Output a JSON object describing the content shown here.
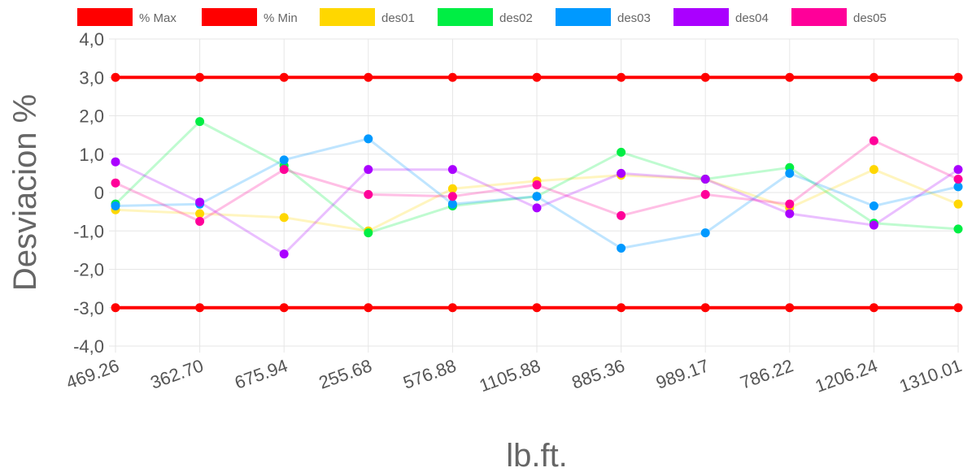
{
  "chart_data": {
    "type": "line",
    "xlabel": "lb.ft.",
    "ylabel": "Desviacion %",
    "ylim": [
      -4,
      4
    ],
    "yticks": [
      "-4,0",
      "-3,0",
      "-2,0",
      "-1,0",
      "0",
      "1,0",
      "2,0",
      "3,0",
      "4,0"
    ],
    "categories": [
      "469.26",
      "362.70",
      "675.94",
      "255.68",
      "576.88",
      "1105.88",
      "885.36",
      "989.17",
      "786.22",
      "1206.24",
      "1310.01"
    ],
    "legend_position": "top",
    "grid": true,
    "series": [
      {
        "name": "% Max",
        "color": "#ff0000",
        "opacity": 1,
        "width": 4,
        "values": [
          3,
          3,
          3,
          3,
          3,
          3,
          3,
          3,
          3,
          3,
          3
        ]
      },
      {
        "name": "% Min",
        "color": "#ff0000",
        "opacity": 1,
        "width": 4,
        "values": [
          -3,
          -3,
          -3,
          -3,
          -3,
          -3,
          -3,
          -3,
          -3,
          -3,
          -3
        ]
      },
      {
        "name": "des01",
        "color": "#ffd700",
        "opacity": 0.25,
        "width": 3,
        "values": [
          -0.45,
          -0.55,
          -0.65,
          -1.0,
          0.1,
          0.3,
          0.45,
          0.35,
          -0.4,
          0.6,
          -0.3
        ]
      },
      {
        "name": "des02",
        "color": "#00ee44",
        "opacity": 0.25,
        "width": 3,
        "values": [
          -0.3,
          1.85,
          0.7,
          -1.05,
          -0.35,
          -0.1,
          1.05,
          0.35,
          0.65,
          -0.8,
          -0.95
        ]
      },
      {
        "name": "des03",
        "color": "#0099ff",
        "opacity": 0.25,
        "width": 3,
        "values": [
          -0.35,
          -0.3,
          0.85,
          1.4,
          -0.3,
          -0.1,
          -1.45,
          -1.05,
          0.5,
          -0.35,
          0.15
        ]
      },
      {
        "name": "des04",
        "color": "#aa00ff",
        "opacity": 0.25,
        "width": 3,
        "values": [
          0.8,
          -0.25,
          -1.6,
          0.6,
          0.6,
          -0.4,
          0.5,
          0.35,
          -0.55,
          -0.85,
          0.6
        ]
      },
      {
        "name": "des05",
        "color": "#ff0099",
        "opacity": 0.25,
        "width": 3,
        "values": [
          0.25,
          -0.75,
          0.6,
          -0.05,
          -0.1,
          0.2,
          -0.6,
          -0.05,
          -0.3,
          1.35,
          0.35
        ]
      }
    ]
  }
}
